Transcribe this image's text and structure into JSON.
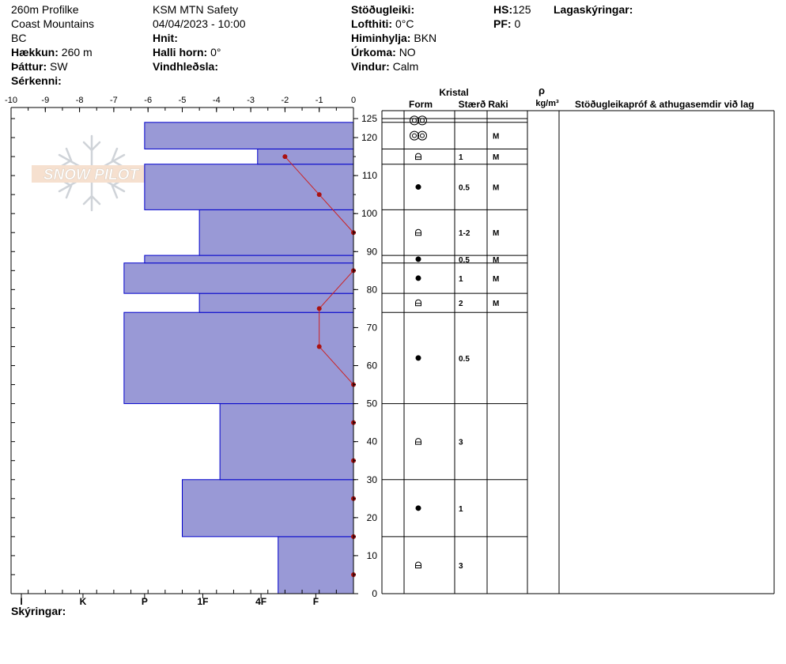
{
  "header": {
    "profile_name": "260m Profilke",
    "range": "Coast Mountains",
    "region": "BC",
    "elevation_label": "Hækkun:",
    "elevation_value": "260 m",
    "aspect_label": "Þáttur:",
    "aspect_value": "SW",
    "features_label": "Sérkenni:",
    "observer": "KSM MTN Safety",
    "datetime": "04/04/2023 - 10:00",
    "coords_label": "Hnit:",
    "slope_label": "Halli horn:",
    "slope_value": "0°",
    "wind_loading_label": "Vindhleðsla:",
    "stability_label": "Stöðugleiki:",
    "air_temp_label": "Lofthiti:",
    "air_temp_value": "0°C",
    "sky_label": "Himinhylja:",
    "sky_value": "BKN",
    "precip_label": "Úrkoma:",
    "precip_value": "NO",
    "wind_label": "Vindur:",
    "wind_value": "Calm",
    "hs_label": "HS:",
    "hs_value": "125",
    "pf_label": "PF:",
    "pf_value": "0",
    "layer_notes_label": "Lagaskýringar:"
  },
  "logo_text": "SNOW PILOT",
  "legend_label": "Skýringar:",
  "table_headers": {
    "crystal": "Kristal",
    "form": "Form",
    "size": "Stærð",
    "moisture": "Raki",
    "density_symbol": "ρ",
    "density_unit": "kg/m³",
    "comments": "Stöðugleikapróf & athugasemdir við lag"
  },
  "colors": {
    "hardness_fill": "#9999d6",
    "hardness_stroke": "#0000cc",
    "temperature_line": "#cc2222",
    "temperature_point": "#aa1111"
  },
  "chart_data": {
    "type": "snow_profile",
    "temperature_axis": {
      "ticks": [
        -10,
        -9,
        -8,
        -7,
        -6,
        -5,
        -4,
        -3,
        -2,
        -1,
        0
      ],
      "tick_labels": [
        "-10",
        "-9",
        "-8",
        "-7",
        "-6",
        "-5",
        "-4",
        "-3",
        "-2",
        "-1",
        "0"
      ],
      "range": [
        -10,
        0
      ]
    },
    "height_axis": {
      "ticks": [
        0,
        10,
        20,
        30,
        40,
        50,
        60,
        70,
        80,
        90,
        100,
        110,
        120,
        125
      ],
      "tick_labels": [
        "0",
        "10",
        "20",
        "30",
        "40",
        "50",
        "60",
        "70",
        "80",
        "90",
        "100",
        "110",
        "120",
        "125"
      ],
      "range": [
        0,
        125
      ]
    },
    "hardness_axis": {
      "labels": [
        "I",
        "K",
        "P",
        "1F",
        "4F",
        "F"
      ],
      "label_positions": [
        -9.7,
        -7.9,
        -6.1,
        -4.4,
        -2.7,
        -1.1
      ]
    },
    "hardness_layers": [
      {
        "bottom": 0,
        "top": 15,
        "hardness_value": -2.2
      },
      {
        "bottom": 15,
        "top": 30,
        "hardness_value": -5.0
      },
      {
        "bottom": 30,
        "top": 50,
        "hardness_value": -3.9
      },
      {
        "bottom": 50,
        "top": 74,
        "hardness_value": -6.7
      },
      {
        "bottom": 74,
        "top": 79,
        "hardness_value": -4.5
      },
      {
        "bottom": 79,
        "top": 87,
        "hardness_value": -6.7
      },
      {
        "bottom": 87,
        "top": 89,
        "hardness_value": -6.1
      },
      {
        "bottom": 89,
        "top": 101,
        "hardness_value": -4.5
      },
      {
        "bottom": 101,
        "top": 113,
        "hardness_value": -6.1
      },
      {
        "bottom": 113,
        "top": 117,
        "hardness_value": -2.8
      },
      {
        "bottom": 117,
        "top": 124,
        "hardness_value": -6.1
      }
    ],
    "temperature_profile": [
      {
        "height": 5,
        "temp": 0
      },
      {
        "height": 15,
        "temp": 0
      },
      {
        "height": 25,
        "temp": 0
      },
      {
        "height": 35,
        "temp": 0
      },
      {
        "height": 45,
        "temp": 0
      },
      {
        "height": 55,
        "temp": 0
      },
      {
        "height": 65,
        "temp": -1
      },
      {
        "height": 75,
        "temp": -1
      },
      {
        "height": 85,
        "temp": 0
      },
      {
        "height": 95,
        "temp": 0
      },
      {
        "height": 105,
        "temp": -1
      },
      {
        "height": 115,
        "temp": -2
      }
    ],
    "layer_table": [
      {
        "bottom": 124,
        "top": 125,
        "form": "graupel-double",
        "size": "",
        "moisture": ""
      },
      {
        "bottom": 117,
        "top": 124,
        "form": "graupel-double",
        "size": "",
        "moisture": "M"
      },
      {
        "bottom": 113,
        "top": 117,
        "form": "faceted",
        "size": "1",
        "moisture": "M"
      },
      {
        "bottom": 101,
        "top": 113,
        "form": "round",
        "size": "0.5",
        "moisture": "M"
      },
      {
        "bottom": 89,
        "top": 101,
        "form": "faceted",
        "size": "1-2",
        "moisture": "M"
      },
      {
        "bottom": 87,
        "top": 89,
        "form": "round",
        "size": "0.5",
        "moisture": "M"
      },
      {
        "bottom": 79,
        "top": 87,
        "form": "round",
        "size": "1",
        "moisture": "M"
      },
      {
        "bottom": 74,
        "top": 79,
        "form": "faceted",
        "size": "2",
        "moisture": "M"
      },
      {
        "bottom": 50,
        "top": 74,
        "form": "round",
        "size": "0.5",
        "moisture": ""
      },
      {
        "bottom": 30,
        "top": 50,
        "form": "faceted",
        "size": "3",
        "moisture": ""
      },
      {
        "bottom": 15,
        "top": 30,
        "form": "round",
        "size": "1",
        "moisture": ""
      },
      {
        "bottom": 0,
        "top": 15,
        "form": "faceted",
        "size": "3",
        "moisture": ""
      }
    ]
  }
}
